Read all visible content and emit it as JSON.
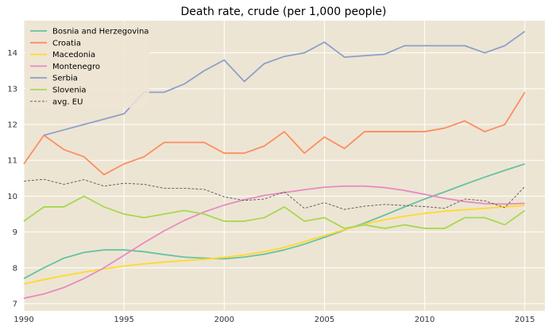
{
  "chart_data": {
    "type": "line",
    "title": "Death rate, crude (per 1,000 people)",
    "xlabel": "",
    "ylabel": "",
    "xlim": [
      1990,
      2016
    ],
    "ylim": [
      6.8,
      14.9
    ],
    "x_ticks": [
      1990,
      1995,
      2000,
      2005,
      2010,
      2015
    ],
    "y_ticks": [
      7,
      8,
      9,
      10,
      11,
      12,
      13,
      14
    ],
    "grid": true,
    "legend_position": "top-left",
    "background": "#ede5d3",
    "x": [
      1990,
      1991,
      1992,
      1993,
      1994,
      1995,
      1996,
      1997,
      1998,
      1999,
      2000,
      2001,
      2002,
      2003,
      2004,
      2005,
      2006,
      2007,
      2008,
      2009,
      2010,
      2011,
      2012,
      2013,
      2014,
      2015
    ],
    "series": [
      {
        "name": "Bosnia and Herzegovina",
        "color": "#66c2a5",
        "style": "solid",
        "values": [
          7.7,
          8.0,
          8.27,
          8.43,
          8.5,
          8.5,
          8.45,
          8.37,
          8.3,
          8.27,
          8.25,
          8.3,
          8.38,
          8.5,
          8.66,
          8.85,
          9.05,
          9.25,
          9.47,
          9.7,
          9.92,
          10.12,
          10.33,
          10.53,
          10.72,
          10.9
        ]
      },
      {
        "name": "Croatia",
        "color": "#fc8d62",
        "style": "solid",
        "values": [
          10.9,
          11.7,
          11.3,
          11.1,
          10.6,
          10.9,
          11.1,
          11.5,
          11.5,
          11.5,
          11.2,
          11.2,
          11.4,
          11.8,
          11.2,
          11.65,
          11.33,
          11.8,
          11.8,
          11.8,
          11.8,
          11.9,
          12.1,
          11.8,
          12.0,
          12.9
        ]
      },
      {
        "name": "Macedonia",
        "color": "#ffd92f",
        "style": "solid",
        "values": [
          7.55,
          7.67,
          7.78,
          7.88,
          7.97,
          8.05,
          8.11,
          8.16,
          8.2,
          8.24,
          8.29,
          8.36,
          8.45,
          8.57,
          8.73,
          8.9,
          9.06,
          9.22,
          9.34,
          9.44,
          9.52,
          9.58,
          9.62,
          9.66,
          9.7,
          9.74
        ]
      },
      {
        "name": "Montenegro",
        "color": "#e78ac3",
        "style": "solid",
        "values": [
          7.15,
          7.27,
          7.45,
          7.7,
          8.0,
          8.35,
          8.7,
          9.03,
          9.32,
          9.56,
          9.75,
          9.9,
          10.02,
          10.1,
          10.18,
          10.25,
          10.28,
          10.28,
          10.24,
          10.16,
          10.05,
          9.94,
          9.85,
          9.79,
          9.78,
          9.8
        ]
      },
      {
        "name": "Serbia",
        "color": "#8da0cb",
        "style": "solid",
        "values": [
          null,
          11.7,
          11.85,
          12.0,
          12.15,
          12.3,
          12.9,
          12.9,
          13.13,
          13.5,
          13.8,
          13.2,
          13.7,
          13.9,
          14.0,
          14.3,
          13.88,
          13.92,
          13.96,
          14.2,
          14.2,
          14.2,
          14.2,
          14.0,
          14.2,
          14.6
        ]
      },
      {
        "name": "Slovenia",
        "color": "#a6d854",
        "style": "solid",
        "values": [
          9.3,
          9.7,
          9.7,
          10.0,
          9.7,
          9.5,
          9.4,
          9.5,
          9.6,
          9.5,
          9.3,
          9.3,
          9.4,
          9.7,
          9.3,
          9.4,
          9.1,
          9.2,
          9.1,
          9.2,
          9.1,
          9.1,
          9.4,
          9.4,
          9.2,
          9.6
        ]
      },
      {
        "name": "avg. EU",
        "color": "#555555",
        "style": "dashed",
        "values": [
          10.42,
          10.47,
          10.33,
          10.46,
          10.28,
          10.36,
          10.33,
          10.22,
          10.22,
          10.19,
          9.98,
          9.88,
          9.92,
          10.12,
          9.66,
          9.82,
          9.63,
          9.72,
          9.77,
          9.74,
          9.71,
          9.66,
          9.92,
          9.87,
          9.68,
          10.27
        ]
      }
    ]
  }
}
